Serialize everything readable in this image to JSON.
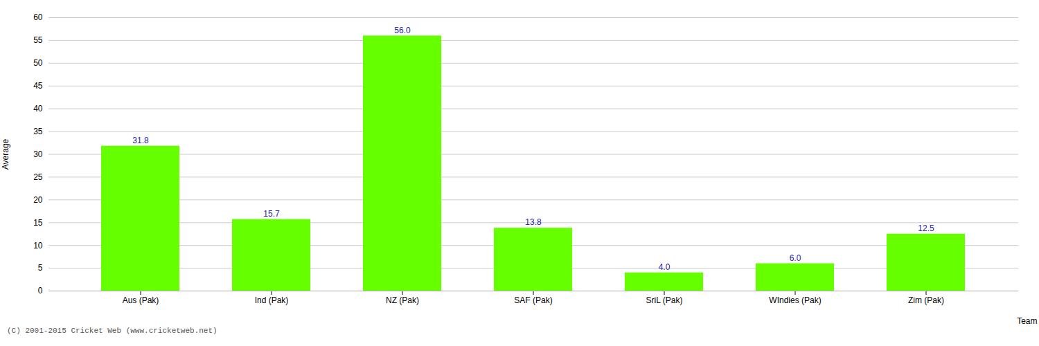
{
  "chart_data": {
    "type": "bar",
    "categories": [
      "Aus (Pak)",
      "Ind (Pak)",
      "NZ (Pak)",
      "SAF (Pak)",
      "SriL (Pak)",
      "WIndies (Pak)",
      "Zim (Pak)"
    ],
    "values": [
      31.8,
      15.7,
      56.0,
      13.8,
      4.0,
      6.0,
      12.5
    ],
    "value_labels": [
      "31.8",
      "15.7",
      "56.0",
      "13.8",
      "4.0",
      "6.0",
      "12.5"
    ],
    "data_labels": true,
    "color": "#66ff00",
    "ylabel": "Average",
    "xlabel": "Team",
    "ylim": [
      0,
      60
    ],
    "yticks": [
      0,
      5,
      10,
      15,
      20,
      25,
      30,
      35,
      40,
      45,
      50,
      55,
      60
    ],
    "grid": true,
    "footer": "(C) 2001-2015 Cricket Web (www.cricketweb.net)"
  }
}
